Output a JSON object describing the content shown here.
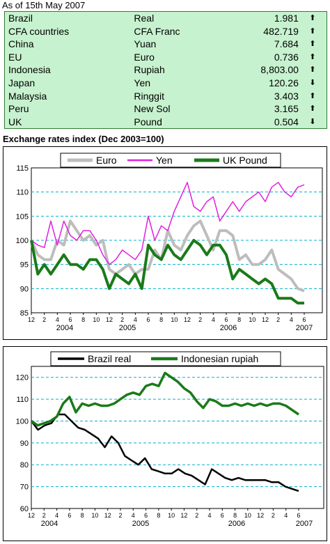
{
  "header": {
    "as_of": "As of 15th May 2007"
  },
  "rates_table": {
    "rows": [
      {
        "country": "Brazil",
        "currency": "Real",
        "value": "1.981",
        "trend": "up"
      },
      {
        "country": "CFA countries",
        "currency": "CFA Franc",
        "value": "482.719",
        "trend": "up"
      },
      {
        "country": "China",
        "currency": "Yuan",
        "value": "7.684",
        "trend": "up"
      },
      {
        "country": "EU",
        "currency": "Euro",
        "value": "0.736",
        "trend": "up"
      },
      {
        "country": "Indonesia",
        "currency": "Rupiah",
        "value": "8,803.00",
        "trend": "up"
      },
      {
        "country": "Japan",
        "currency": "Yen",
        "value": "120.26",
        "trend": "down"
      },
      {
        "country": "Malaysia",
        "currency": "Ringgit",
        "value": "3.403",
        "trend": "up"
      },
      {
        "country": "Peru",
        "currency": "New Sol",
        "value": "3.165",
        "trend": "up"
      },
      {
        "country": "UK",
        "currency": "Pound",
        "value": "0.504",
        "trend": "down"
      }
    ]
  },
  "section": {
    "title": "Exchange rates index (Dec 2003=100)"
  },
  "colors": {
    "table_bg": "#c7f2cf",
    "table_border": "#2f7a2f",
    "grid": "#00b0c8"
  },
  "chart_data": [
    {
      "type": "line",
      "title": "",
      "ylim": [
        85,
        115
      ],
      "yticks": [
        85,
        90,
        95,
        100,
        105,
        110,
        115
      ],
      "x_tick_labels": [
        "12",
        "2",
        "4",
        "6",
        "8",
        "10",
        "12",
        "2",
        "4",
        "6",
        "8",
        "10",
        "12",
        "2",
        "4",
        "6",
        "8",
        "10",
        "12",
        "2",
        "4",
        "6"
      ],
      "year_labels": [
        "2004",
        "2005",
        "2006",
        "2007"
      ],
      "grid": "horizontal dashed",
      "legend": "top",
      "series": [
        {
          "name": "Euro",
          "color": "#bdbdbd",
          "values": [
            100,
            97,
            96,
            96,
            100,
            99,
            104,
            102,
            100,
            101,
            99,
            100,
            94,
            93,
            94,
            95,
            93,
            94,
            94,
            98,
            96,
            102,
            99,
            98,
            101,
            103,
            104,
            101,
            98,
            102,
            102,
            101,
            96,
            97,
            95,
            95,
            96,
            98,
            94,
            93,
            92,
            90,
            89.5
          ]
        },
        {
          "name": "Yen",
          "color": "#e020e0",
          "values": [
            100,
            99,
            98.5,
            104,
            99,
            104,
            101,
            100,
            102,
            102,
            100,
            97,
            95,
            96,
            98,
            97,
            96,
            98,
            105,
            100,
            103,
            102,
            106,
            109,
            112,
            107,
            106,
            108,
            109,
            104,
            106,
            108,
            106,
            108,
            109,
            110,
            108,
            111,
            112,
            110,
            109,
            111,
            111.5
          ]
        },
        {
          "name": "UK Pound",
          "color": "#1a7a1a",
          "values": [
            100,
            93,
            95,
            93,
            95,
            97,
            95,
            95,
            94,
            96,
            96,
            94,
            90,
            93,
            92,
            91,
            93,
            90,
            99,
            97,
            96,
            99,
            97,
            96,
            98,
            100,
            99,
            97,
            99,
            99,
            97,
            92,
            94,
            93,
            92,
            91,
            92,
            91,
            88,
            88,
            88,
            87,
            87
          ]
        }
      ]
    },
    {
      "type": "line",
      "title": "",
      "ylim": [
        60,
        125
      ],
      "yticks": [
        60,
        70,
        80,
        90,
        100,
        110,
        120
      ],
      "x_tick_labels": [
        "12",
        "2",
        "4",
        "6",
        "8",
        "10",
        "12",
        "2",
        "4",
        "6",
        "8",
        "10",
        "12",
        "2",
        "4",
        "6",
        "8",
        "10",
        "12",
        "2",
        "4",
        "6"
      ],
      "year_labels": [
        "2004",
        "2005",
        "2006",
        "2007"
      ],
      "grid": "horizontal dashed",
      "legend": "top",
      "series": [
        {
          "name": "Brazil real",
          "color": "#000000",
          "values": [
            100,
            96,
            98,
            99,
            103,
            103,
            100,
            97,
            96,
            94,
            92,
            88,
            93,
            90,
            84,
            82,
            80,
            83,
            78,
            77,
            76,
            76,
            78,
            76,
            75,
            73,
            71,
            78,
            76,
            74,
            73,
            74,
            73,
            73,
            73,
            73,
            72,
            72,
            70,
            69,
            68
          ]
        },
        {
          "name": "Indonesian rupiah",
          "color": "#1a7a1a",
          "values": [
            100,
            98,
            99,
            100,
            102,
            108,
            111,
            104,
            108,
            107,
            108,
            107,
            107,
            108,
            110,
            112,
            113,
            112,
            116,
            117,
            116,
            122,
            120,
            118,
            115,
            113,
            109,
            106,
            110,
            109,
            107,
            107,
            108,
            107,
            108,
            107,
            108,
            107,
            108,
            108,
            107,
            105,
            103
          ]
        }
      ]
    }
  ]
}
